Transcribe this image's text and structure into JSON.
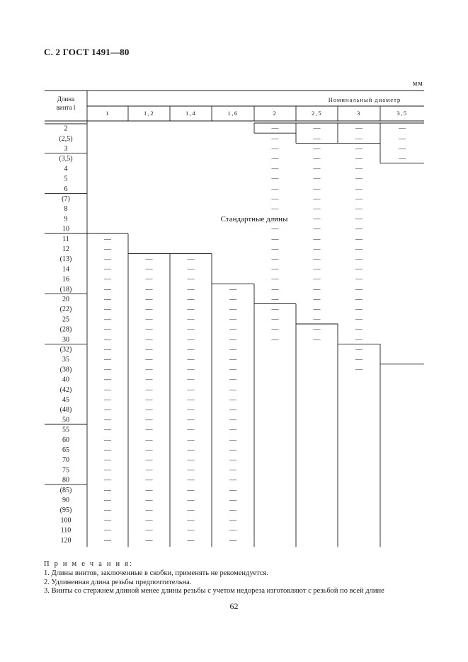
{
  "page_header": "С. 2 ГОСТ 1491—80",
  "unit_label": "мм",
  "table": {
    "length_header_line1": "Длина",
    "length_header_line2": "винта l",
    "diameter_header": "Номинальный диаметр",
    "diameters": [
      "1",
      "1,2",
      "1,4",
      "1,6",
      "2",
      "2,5",
      "3",
      "3,5"
    ],
    "standard_lengths_label": "Стандартные длины",
    "dash": "—",
    "lengths": [
      "2",
      "(2,5)",
      "3",
      "(3,5)",
      "4",
      "5",
      "6",
      "(7)",
      "8",
      "9",
      "10",
      "11",
      "12",
      "(13)",
      "14",
      "16",
      "(18)",
      "20",
      "(22)",
      "25",
      "(28)",
      "30",
      "(32)",
      "35",
      "(38)",
      "40",
      "(42)",
      "45",
      "(48)",
      "50",
      "55",
      "60",
      "65",
      "70",
      "75",
      "80",
      "(85)",
      "90",
      "(95)",
      "100",
      "110",
      "120"
    ],
    "diameter_available_from_length": [
      "11",
      "(13)",
      "(13)",
      "(18)",
      "2",
      "2",
      "2",
      "2"
    ],
    "diameter_available_until_length": [
      "120",
      "120",
      "120",
      "120",
      "30",
      "30",
      "(38)",
      "(3,5)"
    ],
    "diameter_long_from_length": [
      "",
      "",
      "",
      "",
      "(22)",
      "(28)",
      "(32)",
      "(38)"
    ]
  },
  "notes": {
    "title": "П р и м е ч а н и я:",
    "items": [
      "1. Длины винтов, заключенные в скобки, применять не рекомендуется.",
      "2. Удлиненная длина резьбы предпочтительна.",
      "3. Винты со стержнем длиной менее длины резьбы с учетом недореза изготовляют с резьбой по всей длине"
    ]
  },
  "page_number": "62"
}
